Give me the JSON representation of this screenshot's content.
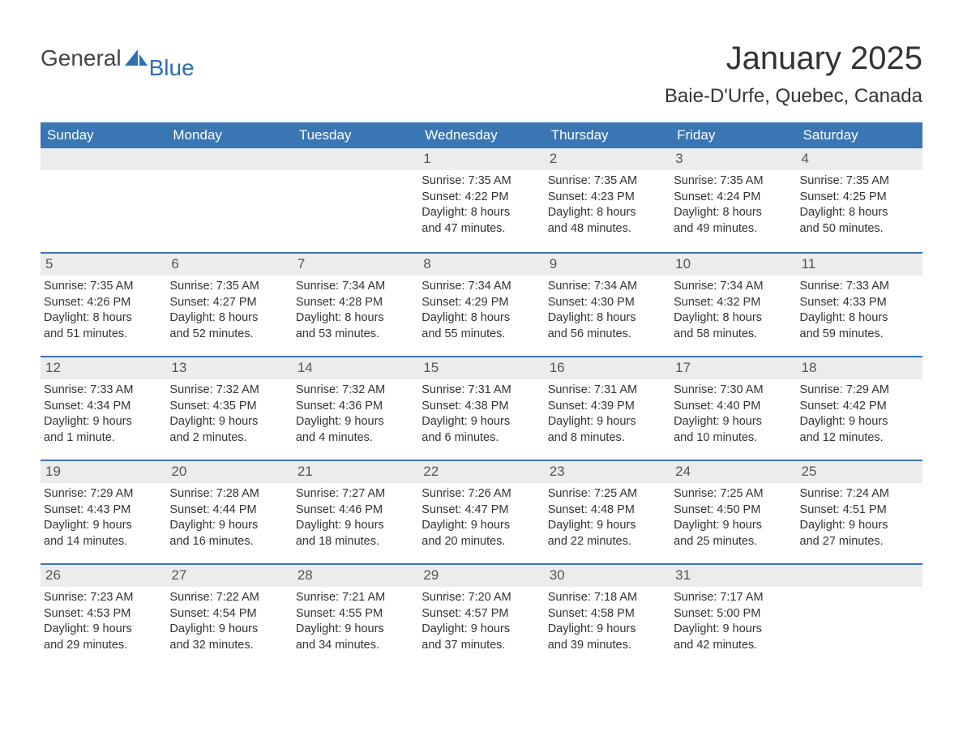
{
  "logo": {
    "part1": "General",
    "part2": "Blue"
  },
  "title": "January 2025",
  "location": "Baie-D'Urfe, Quebec, Canada",
  "colors": {
    "header_bg": "#3a76b4",
    "header_text": "#ffffff",
    "daynum_bg": "#ececec",
    "daynum_text": "#555555",
    "body_text": "#333333",
    "week_border": "#3a76b4",
    "page_bg": "#ffffff",
    "logo_accent": "#2d6fb3",
    "logo_text": "#444444"
  },
  "typography": {
    "title_fontsize": 40,
    "location_fontsize": 24,
    "weekday_fontsize": 17,
    "daynum_fontsize": 17,
    "body_fontsize": 14.5,
    "font_family": "Arial"
  },
  "weekdays": [
    "Sunday",
    "Monday",
    "Tuesday",
    "Wednesday",
    "Thursday",
    "Friday",
    "Saturday"
  ],
  "weeks": [
    [
      {
        "day": "",
        "sunrise": "",
        "sunset": "",
        "daylight1": "",
        "daylight2": ""
      },
      {
        "day": "",
        "sunrise": "",
        "sunset": "",
        "daylight1": "",
        "daylight2": ""
      },
      {
        "day": "",
        "sunrise": "",
        "sunset": "",
        "daylight1": "",
        "daylight2": ""
      },
      {
        "day": "1",
        "sunrise": "Sunrise: 7:35 AM",
        "sunset": "Sunset: 4:22 PM",
        "daylight1": "Daylight: 8 hours",
        "daylight2": "and 47 minutes."
      },
      {
        "day": "2",
        "sunrise": "Sunrise: 7:35 AM",
        "sunset": "Sunset: 4:23 PM",
        "daylight1": "Daylight: 8 hours",
        "daylight2": "and 48 minutes."
      },
      {
        "day": "3",
        "sunrise": "Sunrise: 7:35 AM",
        "sunset": "Sunset: 4:24 PM",
        "daylight1": "Daylight: 8 hours",
        "daylight2": "and 49 minutes."
      },
      {
        "day": "4",
        "sunrise": "Sunrise: 7:35 AM",
        "sunset": "Sunset: 4:25 PM",
        "daylight1": "Daylight: 8 hours",
        "daylight2": "and 50 minutes."
      }
    ],
    [
      {
        "day": "5",
        "sunrise": "Sunrise: 7:35 AM",
        "sunset": "Sunset: 4:26 PM",
        "daylight1": "Daylight: 8 hours",
        "daylight2": "and 51 minutes."
      },
      {
        "day": "6",
        "sunrise": "Sunrise: 7:35 AM",
        "sunset": "Sunset: 4:27 PM",
        "daylight1": "Daylight: 8 hours",
        "daylight2": "and 52 minutes."
      },
      {
        "day": "7",
        "sunrise": "Sunrise: 7:34 AM",
        "sunset": "Sunset: 4:28 PM",
        "daylight1": "Daylight: 8 hours",
        "daylight2": "and 53 minutes."
      },
      {
        "day": "8",
        "sunrise": "Sunrise: 7:34 AM",
        "sunset": "Sunset: 4:29 PM",
        "daylight1": "Daylight: 8 hours",
        "daylight2": "and 55 minutes."
      },
      {
        "day": "9",
        "sunrise": "Sunrise: 7:34 AM",
        "sunset": "Sunset: 4:30 PM",
        "daylight1": "Daylight: 8 hours",
        "daylight2": "and 56 minutes."
      },
      {
        "day": "10",
        "sunrise": "Sunrise: 7:34 AM",
        "sunset": "Sunset: 4:32 PM",
        "daylight1": "Daylight: 8 hours",
        "daylight2": "and 58 minutes."
      },
      {
        "day": "11",
        "sunrise": "Sunrise: 7:33 AM",
        "sunset": "Sunset: 4:33 PM",
        "daylight1": "Daylight: 8 hours",
        "daylight2": "and 59 minutes."
      }
    ],
    [
      {
        "day": "12",
        "sunrise": "Sunrise: 7:33 AM",
        "sunset": "Sunset: 4:34 PM",
        "daylight1": "Daylight: 9 hours",
        "daylight2": "and 1 minute."
      },
      {
        "day": "13",
        "sunrise": "Sunrise: 7:32 AM",
        "sunset": "Sunset: 4:35 PM",
        "daylight1": "Daylight: 9 hours",
        "daylight2": "and 2 minutes."
      },
      {
        "day": "14",
        "sunrise": "Sunrise: 7:32 AM",
        "sunset": "Sunset: 4:36 PM",
        "daylight1": "Daylight: 9 hours",
        "daylight2": "and 4 minutes."
      },
      {
        "day": "15",
        "sunrise": "Sunrise: 7:31 AM",
        "sunset": "Sunset: 4:38 PM",
        "daylight1": "Daylight: 9 hours",
        "daylight2": "and 6 minutes."
      },
      {
        "day": "16",
        "sunrise": "Sunrise: 7:31 AM",
        "sunset": "Sunset: 4:39 PM",
        "daylight1": "Daylight: 9 hours",
        "daylight2": "and 8 minutes."
      },
      {
        "day": "17",
        "sunrise": "Sunrise: 7:30 AM",
        "sunset": "Sunset: 4:40 PM",
        "daylight1": "Daylight: 9 hours",
        "daylight2": "and 10 minutes."
      },
      {
        "day": "18",
        "sunrise": "Sunrise: 7:29 AM",
        "sunset": "Sunset: 4:42 PM",
        "daylight1": "Daylight: 9 hours",
        "daylight2": "and 12 minutes."
      }
    ],
    [
      {
        "day": "19",
        "sunrise": "Sunrise: 7:29 AM",
        "sunset": "Sunset: 4:43 PM",
        "daylight1": "Daylight: 9 hours",
        "daylight2": "and 14 minutes."
      },
      {
        "day": "20",
        "sunrise": "Sunrise: 7:28 AM",
        "sunset": "Sunset: 4:44 PM",
        "daylight1": "Daylight: 9 hours",
        "daylight2": "and 16 minutes."
      },
      {
        "day": "21",
        "sunrise": "Sunrise: 7:27 AM",
        "sunset": "Sunset: 4:46 PM",
        "daylight1": "Daylight: 9 hours",
        "daylight2": "and 18 minutes."
      },
      {
        "day": "22",
        "sunrise": "Sunrise: 7:26 AM",
        "sunset": "Sunset: 4:47 PM",
        "daylight1": "Daylight: 9 hours",
        "daylight2": "and 20 minutes."
      },
      {
        "day": "23",
        "sunrise": "Sunrise: 7:25 AM",
        "sunset": "Sunset: 4:48 PM",
        "daylight1": "Daylight: 9 hours",
        "daylight2": "and 22 minutes."
      },
      {
        "day": "24",
        "sunrise": "Sunrise: 7:25 AM",
        "sunset": "Sunset: 4:50 PM",
        "daylight1": "Daylight: 9 hours",
        "daylight2": "and 25 minutes."
      },
      {
        "day": "25",
        "sunrise": "Sunrise: 7:24 AM",
        "sunset": "Sunset: 4:51 PM",
        "daylight1": "Daylight: 9 hours",
        "daylight2": "and 27 minutes."
      }
    ],
    [
      {
        "day": "26",
        "sunrise": "Sunrise: 7:23 AM",
        "sunset": "Sunset: 4:53 PM",
        "daylight1": "Daylight: 9 hours",
        "daylight2": "and 29 minutes."
      },
      {
        "day": "27",
        "sunrise": "Sunrise: 7:22 AM",
        "sunset": "Sunset: 4:54 PM",
        "daylight1": "Daylight: 9 hours",
        "daylight2": "and 32 minutes."
      },
      {
        "day": "28",
        "sunrise": "Sunrise: 7:21 AM",
        "sunset": "Sunset: 4:55 PM",
        "daylight1": "Daylight: 9 hours",
        "daylight2": "and 34 minutes."
      },
      {
        "day": "29",
        "sunrise": "Sunrise: 7:20 AM",
        "sunset": "Sunset: 4:57 PM",
        "daylight1": "Daylight: 9 hours",
        "daylight2": "and 37 minutes."
      },
      {
        "day": "30",
        "sunrise": "Sunrise: 7:18 AM",
        "sunset": "Sunset: 4:58 PM",
        "daylight1": "Daylight: 9 hours",
        "daylight2": "and 39 minutes."
      },
      {
        "day": "31",
        "sunrise": "Sunrise: 7:17 AM",
        "sunset": "Sunset: 5:00 PM",
        "daylight1": "Daylight: 9 hours",
        "daylight2": "and 42 minutes."
      },
      {
        "day": "",
        "sunrise": "",
        "sunset": "",
        "daylight1": "",
        "daylight2": ""
      }
    ]
  ]
}
